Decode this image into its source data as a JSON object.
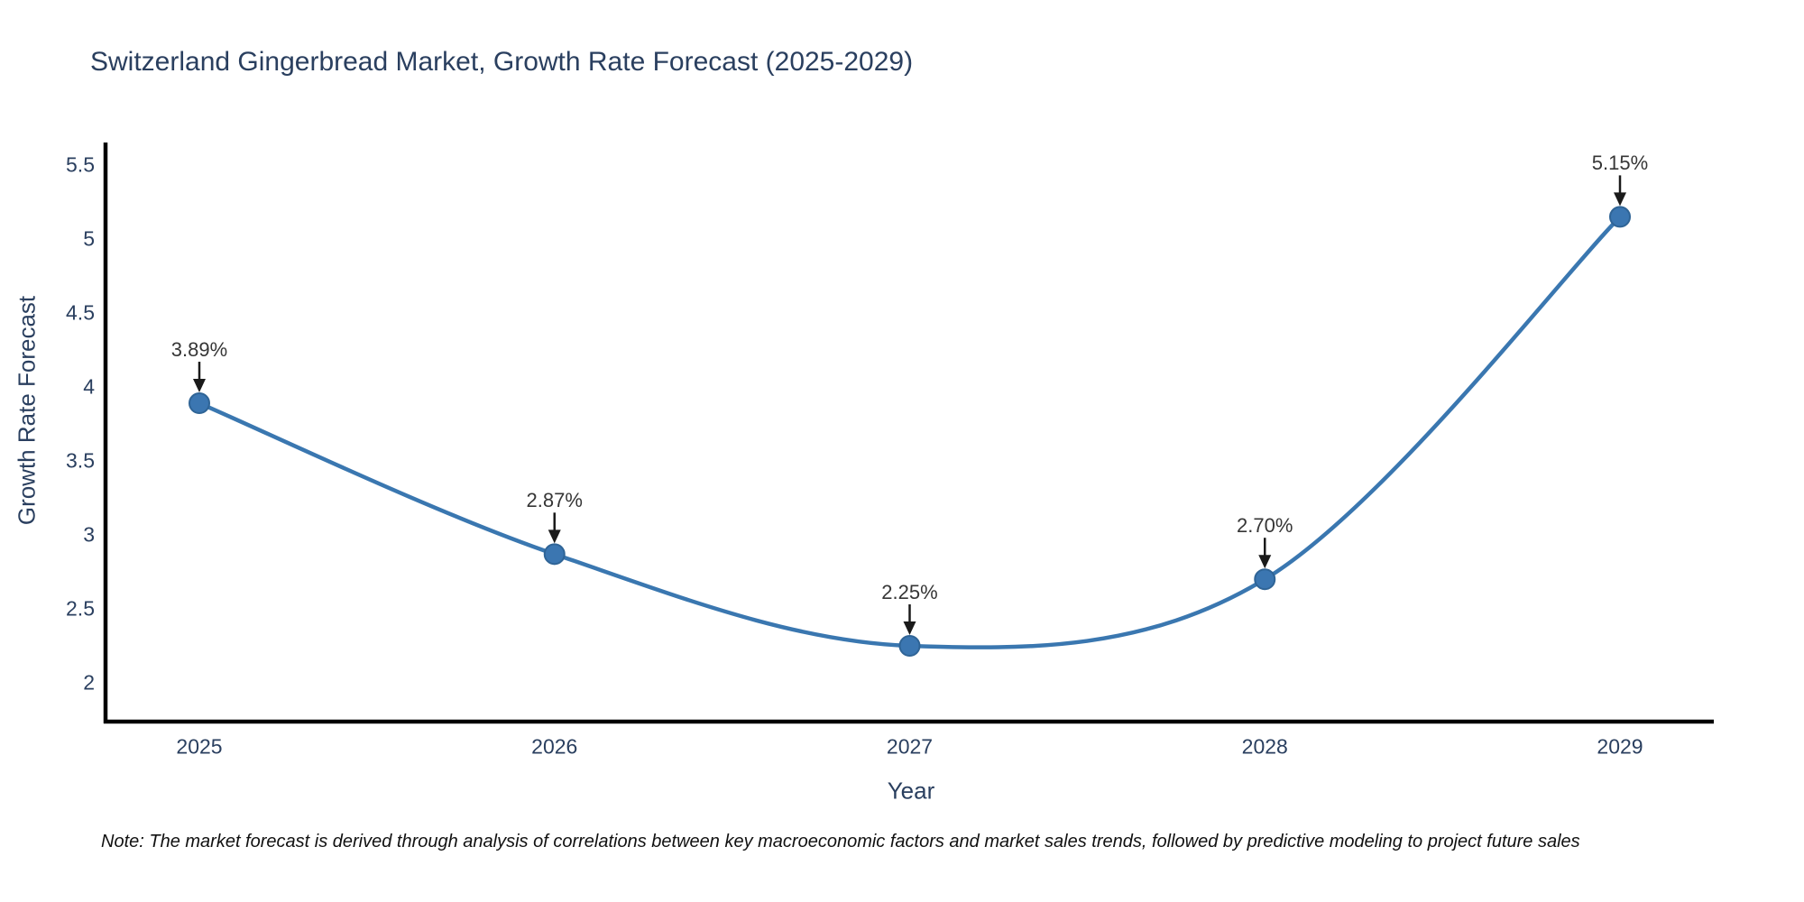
{
  "title": "Switzerland Gingerbread Market, Growth Rate Forecast (2025-2029)",
  "note": "Note: The market forecast is derived through analysis of correlations between key macroeconomic factors and market sales trends, followed by predictive modeling to project future sales",
  "chart_data": {
    "type": "line",
    "title": "Switzerland Gingerbread Market, Growth Rate Forecast (2025-2029)",
    "xlabel": "Year",
    "ylabel": "Growth Rate Forecast",
    "x": [
      2025,
      2026,
      2027,
      2028,
      2029
    ],
    "series": [
      {
        "name": "Growth Rate Forecast",
        "values": [
          3.89,
          2.87,
          2.25,
          2.7,
          5.15
        ],
        "point_labels": [
          "3.89%",
          "2.87%",
          "2.25%",
          "2.70%",
          "5.15%"
        ]
      }
    ],
    "yticks": [
      5.5,
      5,
      4.5,
      4,
      3.5,
      3,
      2.5,
      2
    ],
    "ylim": [
      1.74,
      5.65
    ],
    "xlim": [
      2024.7,
      2029.26
    ],
    "grid": false,
    "legend": "none",
    "line_shape": "spline",
    "annotations_have_arrows": true,
    "colors": {
      "line": "#3a77b0",
      "marker_fill": "#3b76b1",
      "marker_edge": "#2f6496",
      "axis": "#000000",
      "title_text": "#2a3f5f",
      "tick_text": "#2a3f5f",
      "annotation_text": "#363636",
      "arrow": "#1a1a1a",
      "background": "#ffffff"
    }
  }
}
